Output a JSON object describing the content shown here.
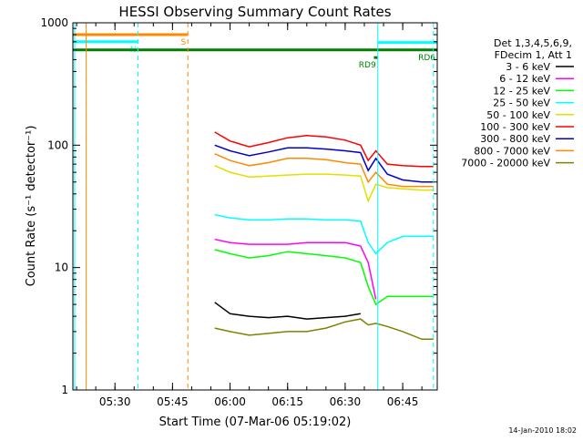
{
  "chart_data": {
    "type": "line",
    "title": "HESSI Observing Summary Count Rates",
    "xlabel": "Start Time (07-Mar-06 05:19:02)",
    "ylabel": "Count Rate (s⁻¹ detector⁻¹)",
    "yscale": "log",
    "ylim": [
      1,
      1000
    ],
    "xlim": [
      "05:19:02",
      "06:54:00"
    ],
    "x_tick_labels": [
      "05:30",
      "05:45",
      "06:00",
      "06:15",
      "06:30",
      "06:45"
    ],
    "x_ticks": [
      "05:30",
      "05:45",
      "06:00",
      "06:15",
      "06:30",
      "06:45"
    ],
    "y_tick_labels": [
      "1",
      "10",
      "100",
      "1000"
    ],
    "grid": false,
    "legend_placement": "right",
    "legend_header": [
      "Det 1,3,4,5,6,9,",
      "FDecim 1, Att 1"
    ],
    "x": [
      "05:56",
      "06:00",
      "06:05",
      "06:10",
      "06:15",
      "06:20",
      "06:25",
      "06:30",
      "06:34",
      "06:36",
      "06:38",
      "06:41",
      "06:45",
      "06:50",
      "06:53"
    ],
    "series": [
      {
        "name": "3 - 6 keV",
        "color": "#000000",
        "values": [
          5.2,
          4.2,
          4.0,
          3.9,
          4.0,
          3.8,
          3.9,
          4.0,
          4.2,
          null,
          null,
          null,
          null,
          null,
          null
        ]
      },
      {
        "name": "6 - 12 keV",
        "color": "#ff00ff",
        "values": [
          17,
          16,
          15.5,
          15.5,
          15.5,
          16,
          16,
          16,
          15,
          11,
          5.5,
          null,
          null,
          null,
          null
        ]
      },
      {
        "name": "12 - 25 keV",
        "color": "#00ff00",
        "values": [
          14,
          13,
          12,
          12.5,
          13.5,
          13,
          12.5,
          12,
          11,
          7,
          5,
          5.8,
          5.8,
          5.8,
          5.8
        ]
      },
      {
        "name": "25 - 50 keV",
        "color": "#00ffff",
        "values": [
          27,
          25.5,
          24.5,
          24.5,
          25,
          25,
          24.5,
          24.5,
          24,
          16,
          13,
          16,
          18,
          18,
          18
        ]
      },
      {
        "name": "50 - 100 keV",
        "color": "#e0e000",
        "values": [
          68,
          60,
          55,
          56,
          57,
          58,
          58,
          57,
          56,
          35,
          48,
          45,
          44,
          43,
          43
        ]
      },
      {
        "name": "100 - 300 keV",
        "color": "#ff0000",
        "values": [
          128,
          108,
          97,
          105,
          115,
          120,
          117,
          110,
          100,
          75,
          90,
          70,
          68,
          67,
          67
        ]
      },
      {
        "name": "300 - 800 keV",
        "color": "#0000cc",
        "values": [
          100,
          90,
          82,
          88,
          95,
          95,
          93,
          90,
          87,
          62,
          78,
          58,
          52,
          50,
          50
        ]
      },
      {
        "name": "800 - 7000 keV",
        "color": "#ff8800",
        "values": [
          85,
          75,
          68,
          72,
          78,
          78,
          76,
          72,
          70,
          50,
          60,
          48,
          46,
          46,
          46
        ]
      },
      {
        "name": "7000 - 20000 keV",
        "color": "#808000",
        "values": [
          3.2,
          3.0,
          2.8,
          2.9,
          3.0,
          3.0,
          3.2,
          3.6,
          3.8,
          3.4,
          3.5,
          3.3,
          3.0,
          2.6,
          2.6
        ]
      }
    ],
    "annotations": [
      {
        "label": "S",
        "color": "#ff8800",
        "start": "05:19:02",
        "end": "05:49:00",
        "level": 800
      },
      {
        "label": "N",
        "color": "#00ffff",
        "start": "05:19:02",
        "end": "05:36:00",
        "level": 700
      },
      {
        "label": "",
        "color": "#00ffff",
        "start": "06:38:30",
        "end": "06:54:00",
        "level": 690
      },
      {
        "label": "RD6",
        "color": "#008000",
        "start": "05:19:02",
        "end": "06:54:00",
        "level": 600
      },
      {
        "label": "RD9",
        "color": "#008000",
        "start": "06:37:30",
        "end": "06:38:30",
        "level": 520
      }
    ],
    "vertical_markers": [
      {
        "time": "05:19:30",
        "color": "#00ffff",
        "style": "solid"
      },
      {
        "time": "05:22:30",
        "color": "#ff8800",
        "style": "solid"
      },
      {
        "time": "05:36:00",
        "color": "#00ffff",
        "style": "dashed"
      },
      {
        "time": "05:49:00",
        "color": "#ff8800",
        "style": "dashed"
      },
      {
        "time": "06:38:30",
        "color": "#00ffff",
        "style": "solid"
      },
      {
        "time": "06:53:00",
        "color": "#00ffff",
        "style": "dashed"
      }
    ],
    "footer_timestamp": "14-Jan-2010 18:02"
  }
}
